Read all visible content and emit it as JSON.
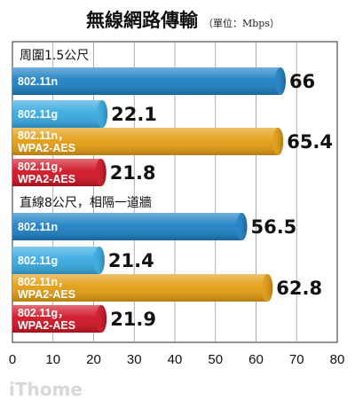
{
  "chart_data": {
    "type": "bar",
    "orientation": "horizontal",
    "title": "無線網路傳輸",
    "unit": "（單位：Mbps）",
    "xlim": [
      0,
      80
    ],
    "xticks": [
      "0",
      "10",
      "20",
      "30",
      "40",
      "50",
      "60",
      "70",
      "80"
    ],
    "grid": true,
    "groups": [
      {
        "label": "周圍1.5公尺",
        "bars": [
          {
            "label": [
              "802.11n"
            ],
            "value": 66,
            "value_text": "66",
            "color": "#1b7fc4"
          },
          {
            "label": [
              "802.11g"
            ],
            "value": 22.1,
            "value_text": "22.1",
            "color": "#35a9e0"
          },
          {
            "label": [
              "802.11n，",
              "WPA2-AES"
            ],
            "value": 65.4,
            "value_text": "65.4",
            "color": "#e39c10"
          },
          {
            "label": [
              "802.11g，",
              "WPA2-AES"
            ],
            "value": 21.8,
            "value_text": "21.8",
            "color": "#cf1222"
          }
        ]
      },
      {
        "label": "直線8公尺，相隔一道牆",
        "bars": [
          {
            "label": [
              "802.11n"
            ],
            "value": 56.5,
            "value_text": "56.5",
            "color": "#1b7fc4"
          },
          {
            "label": [
              "802.11g"
            ],
            "value": 21.4,
            "value_text": "21.4",
            "color": "#35a9e0"
          },
          {
            "label": [
              "802.11n，",
              "WPA2-AES"
            ],
            "value": 62.8,
            "value_text": "62.8",
            "color": "#e39c10"
          },
          {
            "label": [
              "802.11g，",
              "WPA2-AES"
            ],
            "value": 21.9,
            "value_text": "21.9",
            "color": "#cf1222"
          }
        ]
      }
    ]
  },
  "watermark": "iThome"
}
